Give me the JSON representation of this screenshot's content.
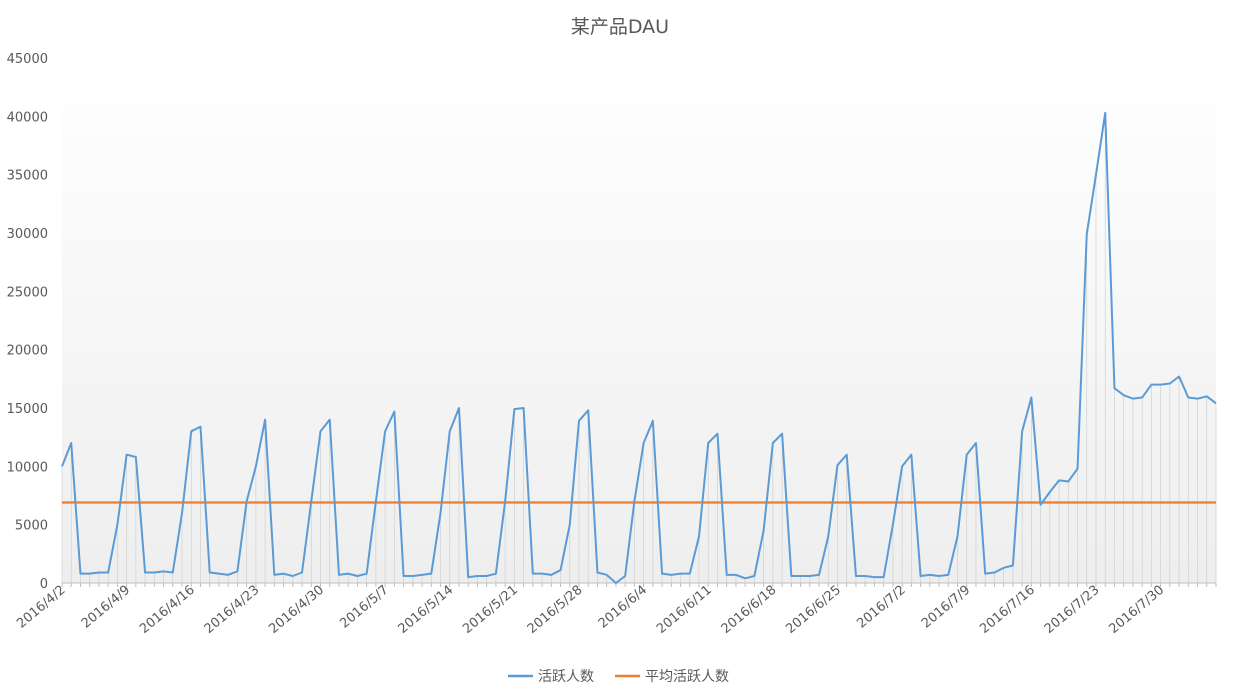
{
  "chart_data": {
    "type": "line",
    "title": "某产品DAU",
    "xlabel": "",
    "ylabel": "",
    "ylim": [
      0,
      45000
    ],
    "yticks": [
      0,
      5000,
      10000,
      15000,
      20000,
      25000,
      30000,
      35000,
      40000,
      45000
    ],
    "x_start": "2016/4/2",
    "xtick_labels": [
      "2016/4/2",
      "2016/4/9",
      "2016/4/16",
      "2016/4/23",
      "2016/4/30",
      "2016/5/7",
      "2016/5/14",
      "2016/5/21",
      "2016/5/28",
      "2016/6/4",
      "2016/6/11",
      "2016/6/18",
      "2016/6/25",
      "2016/7/2",
      "2016/7/9",
      "2016/7/16",
      "2016/7/23",
      "2016/7/30"
    ],
    "grid": false,
    "legend_position": "bottom",
    "series": [
      {
        "name": "活跃人数",
        "color": "#5b9bd5",
        "values": [
          10000,
          12000,
          800,
          800,
          900,
          900,
          5000,
          11000,
          10800,
          900,
          900,
          1000,
          900,
          6000,
          13000,
          13400,
          900,
          800,
          700,
          1000,
          7000,
          10000,
          14000,
          700,
          800,
          600,
          900,
          7000,
          13000,
          14000,
          700,
          800,
          600,
          800,
          7000,
          13000,
          14700,
          600,
          600,
          700,
          800,
          6000,
          13000,
          15000,
          500,
          600,
          600,
          800,
          7000,
          14900,
          15000,
          800,
          800,
          700,
          1100,
          5000,
          13900,
          14800,
          900,
          700,
          0,
          600,
          7000,
          12000,
          13900,
          800,
          700,
          800,
          800,
          4000,
          12000,
          12800,
          700,
          700,
          400,
          600,
          4500,
          12000,
          12800,
          600,
          600,
          600,
          700,
          4000,
          10100,
          11000,
          600,
          600,
          500,
          500,
          5000,
          10000,
          11000,
          600,
          700,
          600,
          700,
          4000,
          11000,
          12000,
          800,
          900,
          1300,
          1500,
          13000,
          15900,
          6700,
          7800,
          8800,
          8700,
          9800,
          29900,
          35000,
          40300,
          16700,
          16100,
          15800,
          15900,
          17000,
          17000,
          17100,
          17700,
          15900,
          15800,
          16000,
          15400
        ]
      },
      {
        "name": "平均活跃人数",
        "color": "#ed7d31",
        "values": [
          6900
        ]
      }
    ]
  }
}
